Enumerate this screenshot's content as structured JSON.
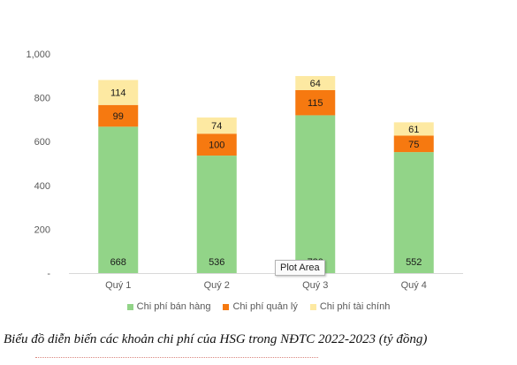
{
  "chart_data": {
    "type": "bar",
    "stacked": true,
    "categories": [
      "Quý 1",
      "Quý 2",
      "Quý 3",
      "Quý 4"
    ],
    "series": [
      {
        "name": "Chi phí bán hàng",
        "values": [
          668,
          536,
          720,
          552
        ],
        "labels": [
          "668",
          "536",
          "720",
          "552"
        ],
        "color": "#92d488"
      },
      {
        "name": "Chi phí quản lý",
        "values": [
          99,
          100,
          115,
          75
        ],
        "labels": [
          "99",
          "100",
          "115",
          "75"
        ],
        "color": "#f67910"
      },
      {
        "name": "Chi phí tài chính",
        "values": [
          114,
          74,
          64,
          61
        ],
        "labels": [
          "114",
          "74",
          "64",
          "61"
        ],
        "color": "#fde9a2"
      }
    ],
    "yticks": [
      0,
      200,
      400,
      600,
      800,
      1000
    ],
    "ytick_labels": [
      "-",
      "200",
      "400",
      "600",
      "800",
      "1,000"
    ],
    "ylim": [
      0,
      1000
    ],
    "grid": false,
    "legend_position": "bottom"
  },
  "tooltip": {
    "text": "Plot Area"
  },
  "caption": "Biểu đồ diễn biến các khoản chi phí của HSG trong NĐTC 2022-2023 (tỷ đồng)"
}
